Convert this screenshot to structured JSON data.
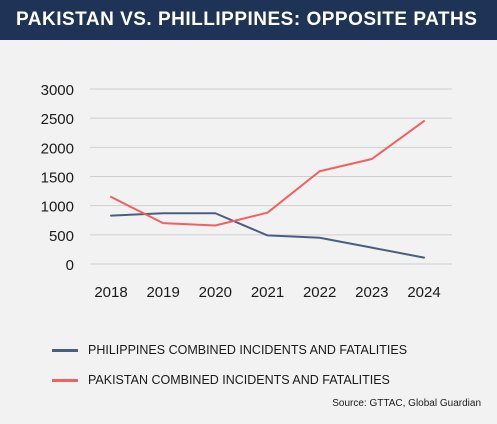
{
  "header": {
    "title": "PAKISTAN VS. PHILLIPPINES: OPPOSITE PATHS"
  },
  "colors": {
    "header_bg": "#1f3357",
    "philippines": "#4a5f80",
    "pakistan": "#f26060"
  },
  "chart_data": {
    "type": "line",
    "x": [
      "2018",
      "2019",
      "2020",
      "2021",
      "2022",
      "2023",
      "2024"
    ],
    "series": [
      {
        "name": "PHILIPPINES COMBINED INCIDENTS AND FATALITIES",
        "color": "#4a5f80",
        "values": [
          830,
          870,
          870,
          490,
          450,
          280,
          110
        ]
      },
      {
        "name": "PAKISTAN COMBINED INCIDENTS AND FATALITIES",
        "color": "#f26060",
        "values": [
          1150,
          700,
          660,
          880,
          1590,
          1800,
          2450
        ]
      }
    ],
    "ylim": [
      0,
      3000
    ],
    "yticks": [
      "0",
      "500",
      "1000",
      "1500",
      "2000",
      "2500",
      "3000"
    ],
    "grid": true,
    "legend_position": "bottom"
  },
  "source": "Source: GTTAC, Global Guardian"
}
